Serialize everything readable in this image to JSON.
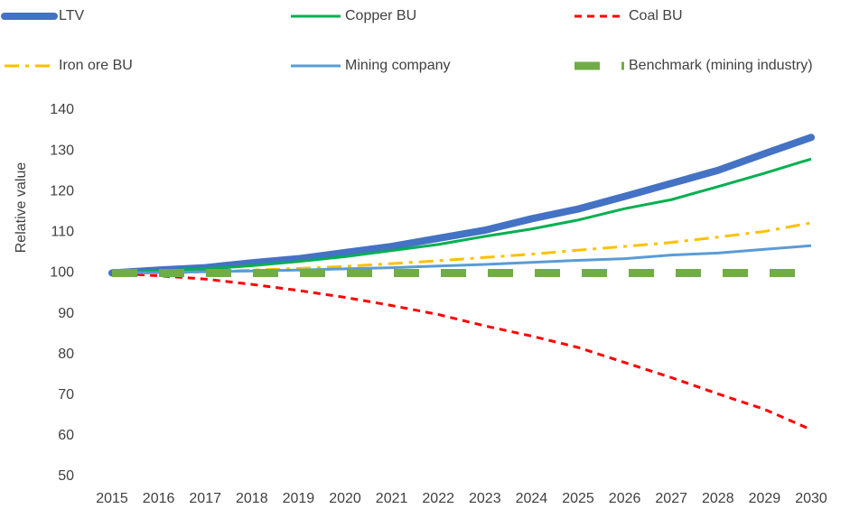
{
  "chart_data": {
    "type": "line",
    "y_label": "Relative value",
    "categories": [
      "2015",
      "2016",
      "2017",
      "2018",
      "2019",
      "2020",
      "2021",
      "2022",
      "2023",
      "2024",
      "2025",
      "2026",
      "2027",
      "2028",
      "2029",
      "2030"
    ],
    "ylim": [
      50,
      140
    ],
    "yticks": [
      50,
      60,
      70,
      80,
      90,
      100,
      110,
      120,
      130,
      140
    ],
    "grid": false,
    "legend": "top",
    "series": [
      {
        "name": "LTV",
        "color": "#4472c4",
        "style": "thick",
        "values": [
          100,
          100.7,
          101.3,
          102.5,
          103.5,
          105,
          106.5,
          108.5,
          110.5,
          113.3,
          115.7,
          118.8,
          122,
          125.2,
          129.3,
          133.3
        ]
      },
      {
        "name": "Copper BU",
        "color": "#00b050",
        "style": "solid",
        "values": [
          100,
          100.5,
          101,
          101.8,
          102.8,
          104,
          105.5,
          107,
          109,
          110.8,
          113,
          115.8,
          118,
          121.2,
          124.5,
          128
        ]
      },
      {
        "name": "Coal BU",
        "color": "#ff0000",
        "style": "dash",
        "values": [
          100,
          99.3,
          98.5,
          97.2,
          95.7,
          94,
          92,
          89.8,
          87,
          84.5,
          81.7,
          78,
          74.3,
          70.3,
          66.5,
          61.5
        ]
      },
      {
        "name": "Iron ore BU",
        "color": "#ffc000",
        "style": "dash-dot",
        "values": [
          100,
          100,
          100.3,
          100.7,
          101.1,
          101.6,
          102.3,
          103,
          103.8,
          104.6,
          105.6,
          106.5,
          107.5,
          108.8,
          110.2,
          112.3
        ]
      },
      {
        "name": "Mining company",
        "color": "#5b9bd5",
        "style": "solid",
        "values": [
          100,
          100.1,
          100.3,
          100.5,
          100.7,
          101,
          101.3,
          101.7,
          102.1,
          102.6,
          103.1,
          103.5,
          104.4,
          104.9,
          105.8,
          106.7
        ]
      },
      {
        "name": "Benchmark (mining industry)",
        "color": "#70ad47",
        "style": "long-dash",
        "values": [
          100,
          100,
          100,
          100,
          100,
          100,
          100,
          100,
          100,
          100,
          100,
          100,
          100,
          100,
          100,
          100
        ]
      }
    ]
  }
}
